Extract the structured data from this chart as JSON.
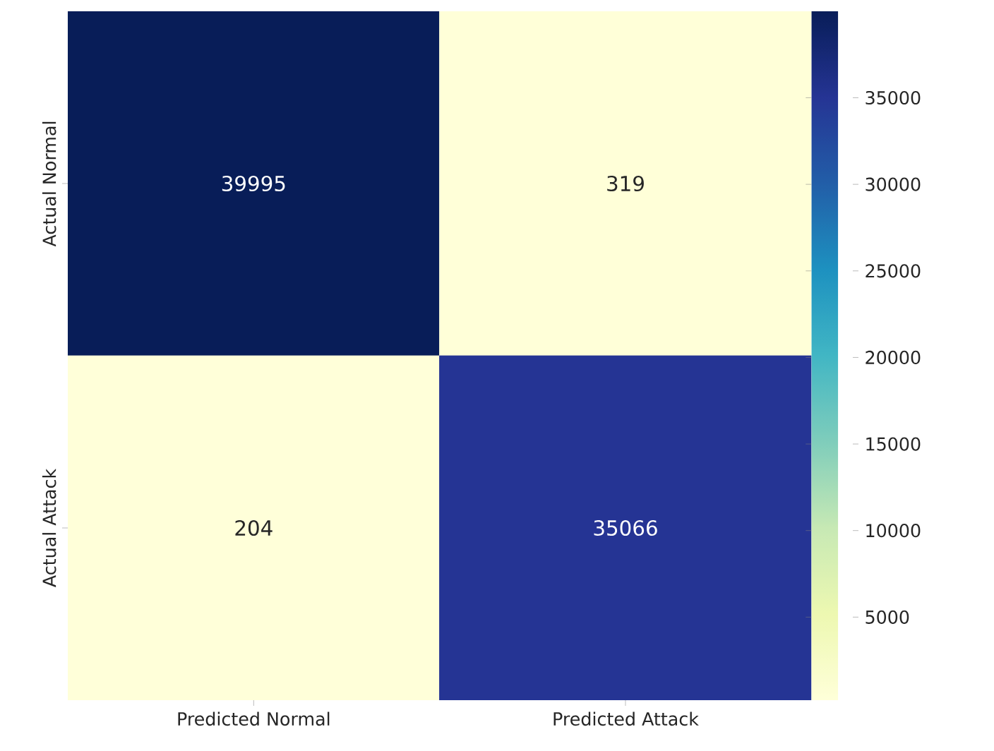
{
  "chart_data": {
    "type": "heatmap",
    "categories": [
      "Predicted Normal",
      "Predicted Attack"
    ],
    "y_categories": [
      "Actual Normal",
      "Actual Attack"
    ],
    "cells": [
      [
        39995,
        319
      ],
      [
        204,
        35066
      ]
    ],
    "data_labels": true,
    "clim": [
      204,
      39995
    ],
    "cticks": [
      5000,
      10000,
      15000,
      20000,
      25000,
      30000,
      35000
    ]
  }
}
